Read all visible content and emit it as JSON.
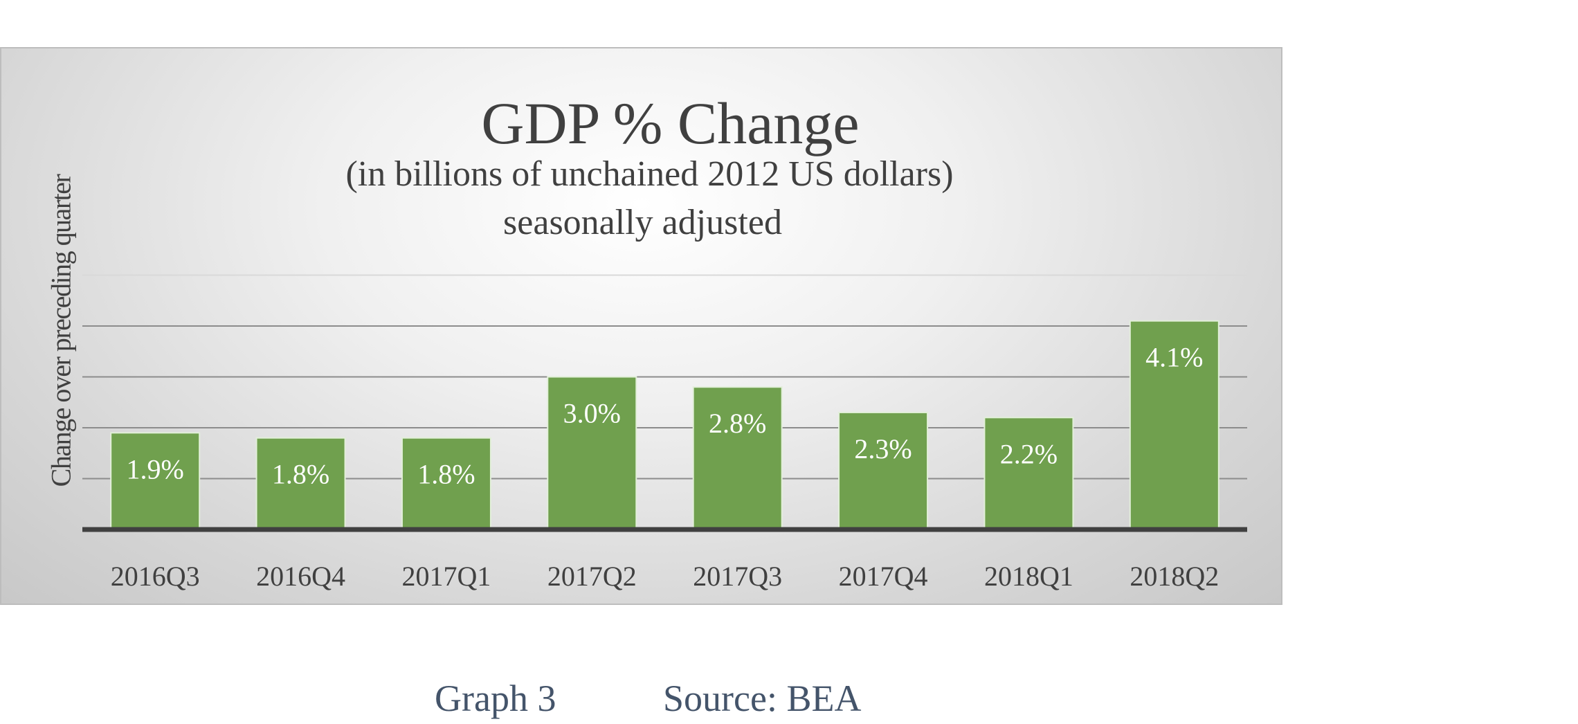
{
  "chart_data": {
    "type": "bar",
    "title": "GDP % Change",
    "subtitle_lines": [
      "(in billions of unchained 2012 US dollars)",
      "seasonally adjusted"
    ],
    "xlabel": "",
    "ylabel": "Change over preceding quarter",
    "categories": [
      "2016Q3",
      "2016Q4",
      "2017Q1",
      "2017Q2",
      "2017Q3",
      "2017Q4",
      "2018Q1",
      "2018Q2"
    ],
    "values": [
      1.9,
      1.8,
      1.8,
      3.0,
      2.8,
      2.3,
      2.2,
      4.1
    ],
    "data_labels": [
      "1.9%",
      "1.8%",
      "1.8%",
      "3.0%",
      "2.8%",
      "2.3%",
      "2.2%",
      "4.1%"
    ],
    "ylim": [
      0,
      5
    ],
    "gridlines": true,
    "y_tick_labels_shown": false,
    "legend": "none",
    "colors": {
      "bar_fill": "#70a04e",
      "bar_border": "#e2efd9",
      "data_label": "#ffffff",
      "text": "#404040",
      "gridline": "#8c8c8c",
      "baseline": "#404040"
    }
  },
  "caption": {
    "graph_label": "Graph 3",
    "source": "Source: BEA",
    "color": "#44546a"
  }
}
